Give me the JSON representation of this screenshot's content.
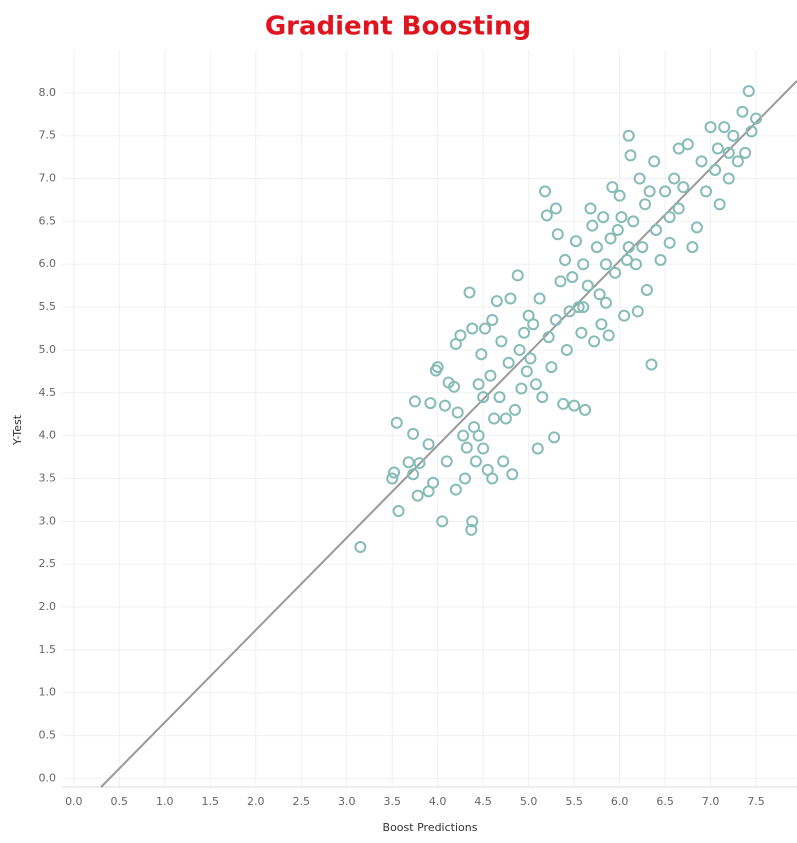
{
  "chart_data": {
    "type": "scatter",
    "title": "Gradient Boosting",
    "x_label": "Boost Predictions",
    "y_label": "Y-Test",
    "color": "#86bcb6",
    "grid": true,
    "xlim": [
      -0.13,
      7.95
    ],
    "ylim": [
      -0.1,
      8.5
    ],
    "xticks": [
      {
        "value": 0,
        "label": "0.0"
      },
      0.5,
      {
        "value": 1,
        "label": "1.0"
      },
      1.5,
      {
        "value": 2,
        "label": "2.0"
      },
      2.5,
      {
        "value": 3,
        "label": "3.0"
      },
      3.5,
      {
        "value": 4,
        "label": "4.0"
      },
      4.5,
      {
        "value": 5,
        "label": "5.0"
      },
      5.5,
      {
        "value": 6,
        "label": "6.0"
      },
      6.5,
      {
        "value": 7,
        "label": "7.0"
      },
      7.5
    ],
    "yticks": [
      {
        "value": 0,
        "label": "0.0"
      },
      0.5,
      {
        "value": 1,
        "label": "1.0"
      },
      1.5,
      {
        "value": 2,
        "label": "2.0"
      },
      2.5,
      {
        "value": 3,
        "label": "3.0"
      },
      3.5,
      {
        "value": 4,
        "label": "4.0"
      },
      4.5,
      {
        "value": 5,
        "label": "5.0"
      },
      5.5,
      {
        "value": 6,
        "label": "6.0"
      },
      6.5,
      {
        "value": 7,
        "label": "7.0"
      },
      7.5,
      {
        "value": 8,
        "label": "8.0"
      }
    ],
    "reference_line": {
      "color": "#999999",
      "x": [
        0.3,
        7.95
      ],
      "y": [
        -0.1,
        8.14
      ]
    },
    "x": [
      3.15,
      3.5,
      3.52,
      3.55,
      3.57,
      3.68,
      3.73,
      3.73,
      3.75,
      3.78,
      3.8,
      3.9,
      3.92,
      3.9,
      3.95,
      3.98,
      4.0,
      4.05,
      4.08,
      4.1,
      4.12,
      4.18,
      4.2,
      4.2,
      4.22,
      4.25,
      4.28,
      4.3,
      4.32,
      4.35,
      4.37,
      4.38,
      4.38,
      4.4,
      4.42,
      4.45,
      4.48,
      4.5,
      4.5,
      4.52,
      4.55,
      4.58,
      4.6,
      4.62,
      4.65,
      4.68,
      4.7,
      4.72,
      4.75,
      4.78,
      4.8,
      4.82,
      4.85,
      4.88,
      4.9,
      4.92,
      4.95,
      4.98,
      5.0,
      5.02,
      5.05,
      5.08,
      5.1,
      5.12,
      5.15,
      5.18,
      5.2,
      5.22,
      5.25,
      5.28,
      5.3,
      5.32,
      5.35,
      5.38,
      5.4,
      5.42,
      5.45,
      5.48,
      5.5,
      5.52,
      5.55,
      5.58,
      5.6,
      5.62,
      5.65,
      5.68,
      5.7,
      5.72,
      5.75,
      5.78,
      5.8,
      5.82,
      5.85,
      5.88,
      5.9,
      5.92,
      5.95,
      5.98,
      6.0,
      6.02,
      6.05,
      6.08,
      6.1,
      6.12,
      6.15,
      6.18,
      6.2,
      6.22,
      6.25,
      6.28,
      6.3,
      6.33,
      6.35,
      6.38,
      6.4,
      6.45,
      6.5,
      6.55,
      6.6,
      6.65,
      6.7,
      6.75,
      6.8,
      6.85,
      6.9,
      6.95,
      7.0,
      7.05,
      7.08,
      7.1,
      7.15,
      7.2,
      7.25,
      7.3,
      7.35,
      7.38,
      7.42,
      7.45,
      7.5,
      6.55,
      4.45,
      4.6,
      5.85,
      6.1,
      6.65,
      7.2,
      5.3,
      5.6
    ],
    "values": [
      2.7,
      3.5,
      3.57,
      4.15,
      3.12,
      3.69,
      3.55,
      4.02,
      4.4,
      3.3,
      3.68,
      3.9,
      4.38,
      3.35,
      3.45,
      4.76,
      4.8,
      3.0,
      4.35,
      3.7,
      4.62,
      4.57,
      3.37,
      5.07,
      4.27,
      5.17,
      4.0,
      3.5,
      3.86,
      5.67,
      2.9,
      3.0,
      5.25,
      4.1,
      3.7,
      4.6,
      4.95,
      3.85,
      4.45,
      5.25,
      3.6,
      4.7,
      5.35,
      4.2,
      5.57,
      4.45,
      5.1,
      3.7,
      4.2,
      4.85,
      5.6,
      3.55,
      4.3,
      5.87,
      5.0,
      4.55,
      5.2,
      4.75,
      5.4,
      4.9,
      5.3,
      4.6,
      3.85,
      5.6,
      4.45,
      6.85,
      6.57,
      5.15,
      4.8,
      3.98,
      6.65,
      6.35,
      5.8,
      4.37,
      6.05,
      5.0,
      5.45,
      5.85,
      4.35,
      6.27,
      5.5,
      5.2,
      6.0,
      4.3,
      5.75,
      6.65,
      6.45,
      5.1,
      6.2,
      5.65,
      5.3,
      6.55,
      6.0,
      5.17,
      6.3,
      6.9,
      5.9,
      6.4,
      6.8,
      6.55,
      5.4,
      6.05,
      7.5,
      7.27,
      6.5,
      6.0,
      5.45,
      7.0,
      6.2,
      6.7,
      5.7,
      6.85,
      4.83,
      7.2,
      6.4,
      6.05,
      6.85,
      6.55,
      7.0,
      7.35,
      6.9,
      7.4,
      6.2,
      6.43,
      7.2,
      6.85,
      7.6,
      7.1,
      7.35,
      6.7,
      7.6,
      7.0,
      7.5,
      7.2,
      7.78,
      7.3,
      8.02,
      7.55,
      7.7,
      6.25,
      4.0,
      3.5,
      5.55,
      6.2,
      6.65,
      7.3,
      5.35,
      5.5
    ]
  }
}
